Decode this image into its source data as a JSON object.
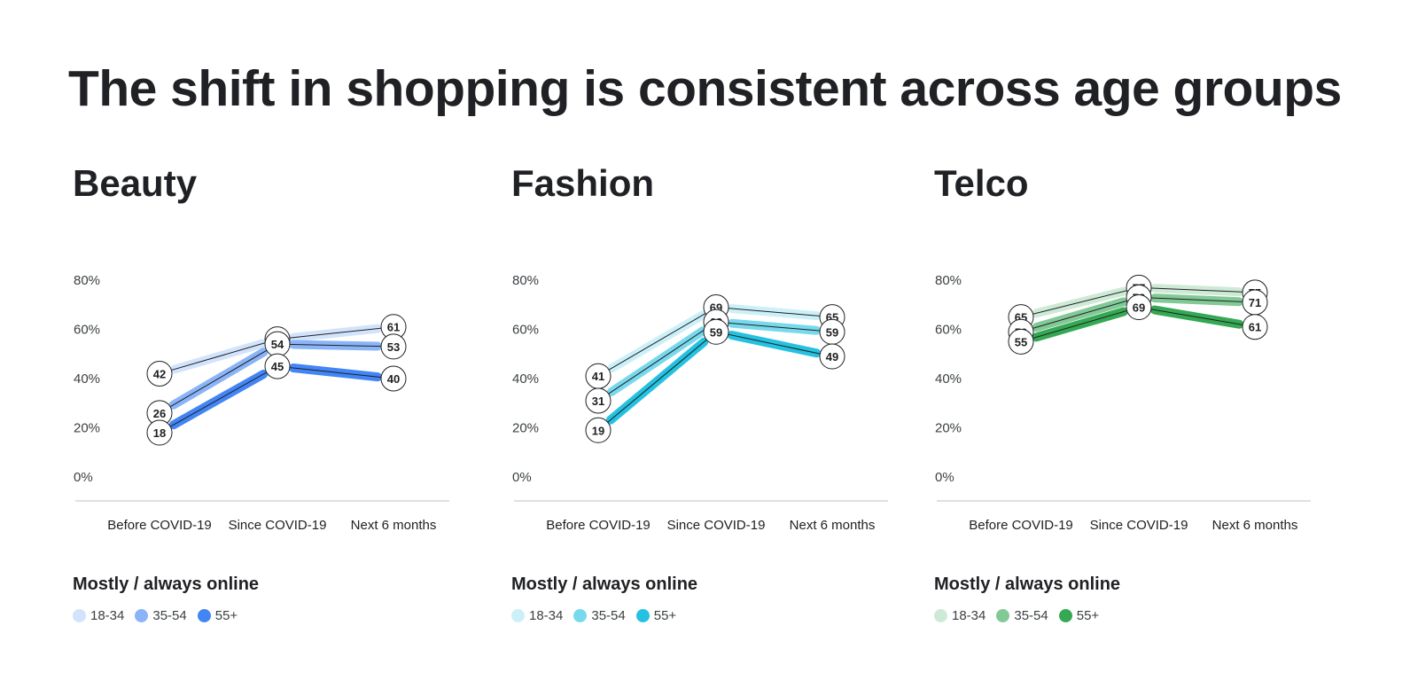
{
  "title": "The shift in shopping is consistent across age groups",
  "legend_title": "Mostly / always online",
  "chart_data": [
    {
      "type": "line",
      "title": "Beauty",
      "categories": [
        "Before COVID-19",
        "Since COVID-19",
        "Next 6 months"
      ],
      "y_ticks": [
        "0%",
        "20%",
        "40%",
        "60%",
        "80%"
      ],
      "ylim": [
        0,
        80
      ],
      "series": [
        {
          "name": "18-34",
          "values": [
            42,
            56,
            61
          ],
          "color": "#d2e3fc"
        },
        {
          "name": "35-54",
          "values": [
            26,
            54,
            53
          ],
          "color": "#8ab4f8"
        },
        {
          "name": "55+",
          "values": [
            18,
            45,
            40
          ],
          "color": "#4285f4"
        }
      ]
    },
    {
      "type": "line",
      "title": "Fashion",
      "categories": [
        "Before COVID-19",
        "Since COVID-19",
        "Next 6 months"
      ],
      "y_ticks": [
        "0%",
        "20%",
        "40%",
        "60%",
        "80%"
      ],
      "ylim": [
        0,
        80
      ],
      "series": [
        {
          "name": "18-34",
          "values": [
            41,
            69,
            65
          ],
          "color": "#cbf0f8"
        },
        {
          "name": "35-54",
          "values": [
            31,
            63,
            59
          ],
          "color": "#78d9ec"
        },
        {
          "name": "55+",
          "values": [
            19,
            59,
            49
          ],
          "color": "#24c1e0"
        }
      ]
    },
    {
      "type": "line",
      "title": "Telco",
      "categories": [
        "Before COVID-19",
        "Since COVID-19",
        "Next 6 months"
      ],
      "y_ticks": [
        "0%",
        "20%",
        "40%",
        "60%",
        "80%"
      ],
      "ylim": [
        0,
        80
      ],
      "series": [
        {
          "name": "18-34",
          "values": [
            65,
            77,
            75
          ],
          "color": "#ceead6"
        },
        {
          "name": "35-54",
          "values": [
            59,
            73,
            71
          ],
          "color": "#81c995"
        },
        {
          "name": "55+",
          "values": [
            55,
            69,
            61
          ],
          "color": "#34a853"
        }
      ]
    }
  ]
}
